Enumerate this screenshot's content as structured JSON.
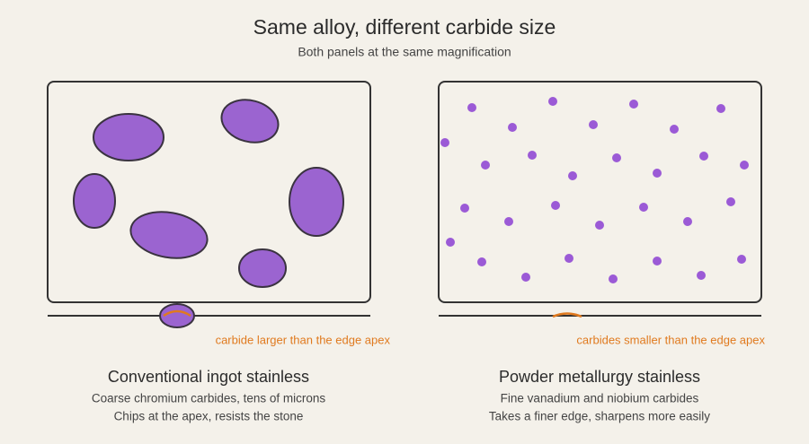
{
  "header": {
    "title": "Same alloy, different carbide size",
    "subtitle": "Both panels at the same magnification"
  },
  "panels": [
    {
      "annotation": "carbide larger than the edge apex",
      "title": "Conventional ingot stainless",
      "lines": [
        "Coarse chromium carbides, tens of microns",
        "Chips at the apex, resists the stone"
      ]
    },
    {
      "annotation": "carbides smaller than the edge apex",
      "title": "Powder metallurgy stainless",
      "lines": [
        "Fine vanadium and niobium carbides",
        "Takes a finer edge, sharpens more easily"
      ]
    }
  ]
}
